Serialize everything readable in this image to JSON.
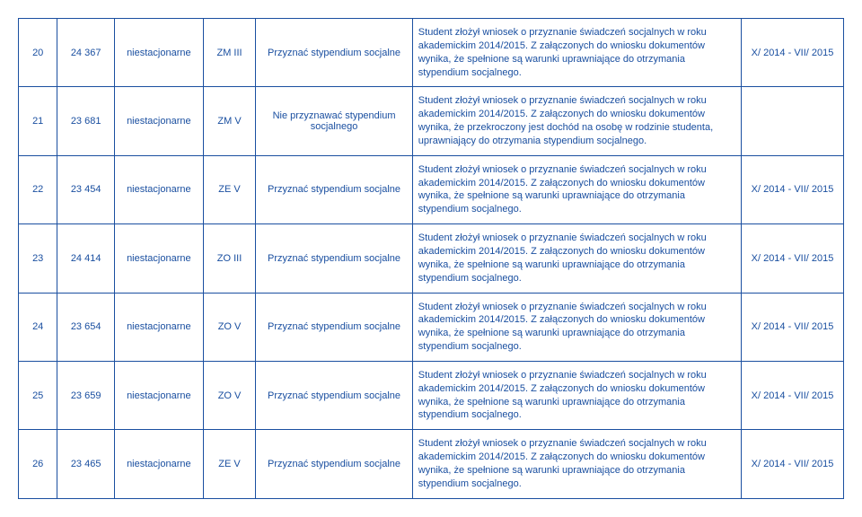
{
  "rows": [
    {
      "no": "20",
      "id": "24 367",
      "mode": "niestacjonarne",
      "code": "ZM III",
      "decision": "Przyznać stypendium socjalne",
      "description": "Student złożył wniosek o przyznanie świadczeń socjalnych w roku akademickim 2014/2015. Z załączonych do wniosku dokumentów wynika, że spełnione są warunki uprawniające do otrzymania stypendium socjalnego.",
      "period": "X/ 2014 - VII/ 2015"
    },
    {
      "no": "21",
      "id": "23 681",
      "mode": "niestacjonarne",
      "code": "ZM V",
      "decision": "Nie przyznawać stypendium socjalnego",
      "description": "Student złożył wniosek o przyznanie świadczeń socjalnych w roku akademickim 2014/2015. Z załączonych do wniosku dokumentów wynika, że przekroczony jest dochód na osobę w rodzinie studenta, uprawniający do otrzymania stypendium socjalnego.",
      "period": ""
    },
    {
      "no": "22",
      "id": "23 454",
      "mode": "niestacjonarne",
      "code": "ZE V",
      "decision": "Przyznać stypendium socjalne",
      "description": "Student złożył wniosek o przyznanie świadczeń socjalnych w roku akademickim 2014/2015. Z załączonych do wniosku dokumentów wynika, że spełnione są warunki uprawniające do otrzymania stypendium socjalnego.",
      "period": "X/ 2014 - VII/ 2015"
    },
    {
      "no": "23",
      "id": "24 414",
      "mode": "niestacjonarne",
      "code": "ZO III",
      "decision": "Przyznać stypendium socjalne",
      "description": "Student złożył wniosek o przyznanie świadczeń socjalnych w roku akademickim 2014/2015. Z załączonych do wniosku dokumentów wynika, że spełnione są warunki uprawniające do otrzymania stypendium socjalnego.",
      "period": "X/ 2014 - VII/ 2015"
    },
    {
      "no": "24",
      "id": "23 654",
      "mode": "niestacjonarne",
      "code": "ZO V",
      "decision": "Przyznać stypendium socjalne",
      "description": "Student złożył wniosek o przyznanie świadczeń socjalnych w roku akademickim 2014/2015. Z załączonych do wniosku dokumentów wynika, że spełnione są warunki uprawniające do otrzymania stypendium socjalnego.",
      "period": "X/ 2014 - VII/ 2015"
    },
    {
      "no": "25",
      "id": "23 659",
      "mode": "niestacjonarne",
      "code": "ZO V",
      "decision": "Przyznać stypendium socjalne",
      "description": "Student złożył wniosek o przyznanie świadczeń socjalnych w roku akademickim 2014/2015. Z załączonych do wniosku dokumentów wynika, że spełnione są warunki uprawniające do otrzymania stypendium socjalnego.",
      "period": "X/ 2014 - VII/ 2015"
    },
    {
      "no": "26",
      "id": "23 465",
      "mode": "niestacjonarne",
      "code": "ZE V",
      "decision": "Przyznać stypendium socjalne",
      "description": "Student złożył wniosek o przyznanie świadczeń socjalnych w roku akademickim 2014/2015. Z załączonych do wniosku dokumentów wynika, że spełnione są warunki uprawniające do otrzymania stypendium socjalnego.",
      "period": "X/ 2014 - VII/ 2015"
    }
  ]
}
